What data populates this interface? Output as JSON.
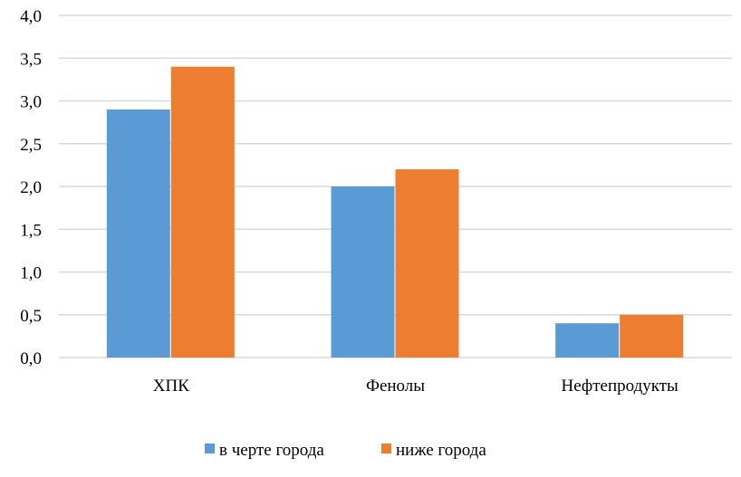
{
  "chart_data": {
    "type": "bar",
    "title": "",
    "xlabel": "",
    "ylabel": "",
    "categories": [
      "ХПК",
      "Фенолы",
      "Нефтепродукты"
    ],
    "series": [
      {
        "name": "в черте города",
        "values": [
          2.9,
          2.0,
          0.4
        ],
        "color": "#5B9BD5"
      },
      {
        "name": "ниже города",
        "values": [
          3.4,
          2.2,
          0.5
        ],
        "color": "#ED7D31"
      }
    ],
    "ylim": [
      0,
      4.0
    ],
    "yticks": [
      "0,0",
      "0,5",
      "1,0",
      "1,5",
      "2,0",
      "2,5",
      "3,0",
      "3,5",
      "4,0"
    ],
    "grid": true,
    "legend": "bottom"
  }
}
